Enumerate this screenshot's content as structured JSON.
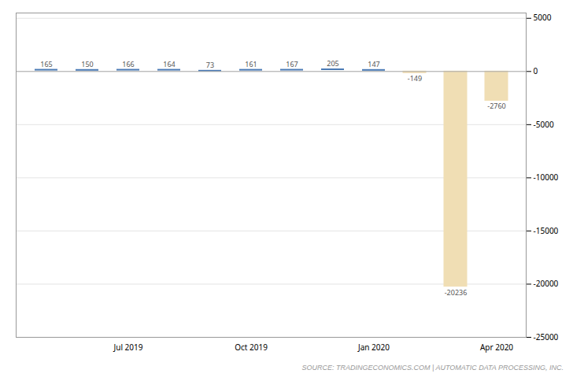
{
  "chart_data": {
    "type": "bar",
    "categories": [
      null,
      null,
      "Jul 2019",
      null,
      null,
      "Oct 2019",
      null,
      null,
      "Jan 2020",
      null,
      null,
      "Apr 2020"
    ],
    "series": [
      {
        "type": "tick",
        "color": "#4a7ab5",
        "values": [
          165,
          150,
          166,
          164,
          73,
          161,
          167,
          205,
          147,
          null,
          null,
          null
        ]
      },
      {
        "type": "bar",
        "color": "#f0deb4",
        "values": [
          null,
          null,
          null,
          null,
          null,
          null,
          null,
          null,
          null,
          -149,
          -20236,
          -2760
        ]
      }
    ],
    "ylim": [
      -25000,
      5500
    ],
    "yticks": [
      5000,
      0,
      -5000,
      -10000,
      -15000,
      -20000,
      -25000
    ],
    "grid": true,
    "data_labels": true,
    "annotations": [
      "SOURCE: TRADINGECONOMICS.COM | AUTOMATIC DATA PROCESSING, INC."
    ]
  }
}
